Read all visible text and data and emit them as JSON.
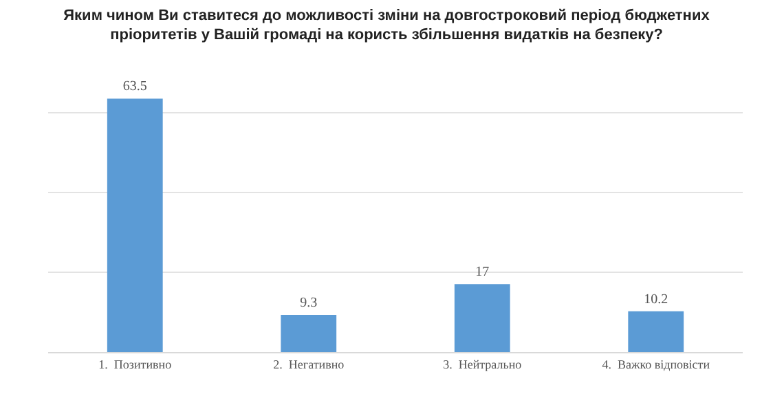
{
  "chart_data": {
    "type": "bar",
    "title": "Яким чином Ви ставитеся до можливості зміни на довгостроковий період бюджетних пріоритетів у Вашій громаді на користь збільшення видатків на безпеку?",
    "categories": [
      "1.  Позитивно",
      "2.  Негативно",
      "3.  Нейтрально",
      "4.  Важко відповісти"
    ],
    "values": [
      63.5,
      9.3,
      17,
      10.2
    ],
    "color": "#5b9bd5",
    "grid": "y",
    "tick_labels": "x",
    "data_labels": true
  }
}
